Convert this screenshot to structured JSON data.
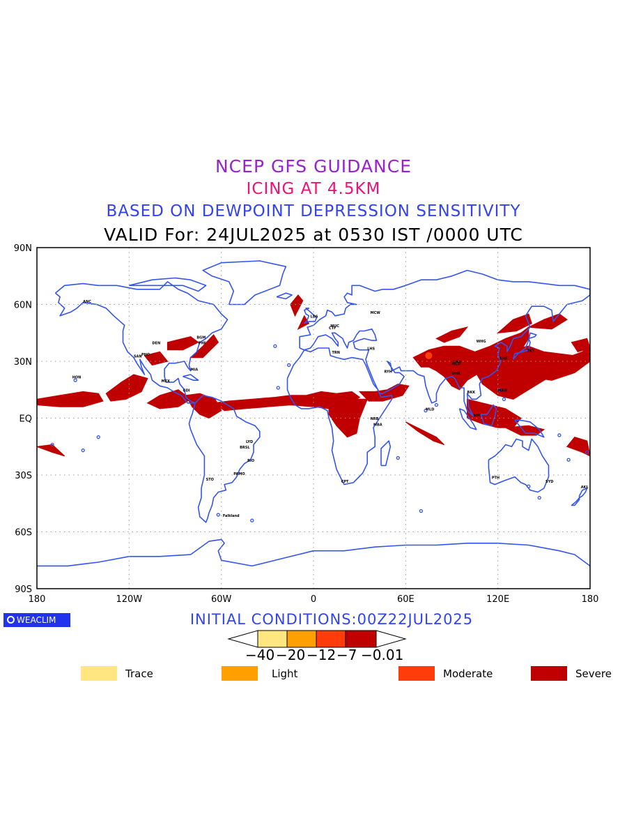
{
  "header": {
    "line1": "NCEP GFS GUIDANCE",
    "line2": "ICING AT 4.5KM",
    "line3": "BASED ON DEWPOINT DEPRESSION SENSITIVITY",
    "line4": "VALID For: 24JUL2025 at 0530 IST /0000 UTC"
  },
  "colors": {
    "line1": "#9922cc",
    "line2": "#ee1177",
    "line3": "#3344ee",
    "line4": "#000000",
    "coastline": "#3355ee",
    "trace": "#ffe680",
    "light": "#ffa000",
    "moderate": "#ff3c0a",
    "severe": "#c00000"
  },
  "map": {
    "lat_labels": [
      "90N",
      "60N",
      "30N",
      "EQ",
      "30S",
      "60S",
      "90S"
    ],
    "lon_labels": [
      "180",
      "120W",
      "60W",
      "0",
      "60E",
      "120E",
      "180"
    ],
    "station_labels": [
      "ANC",
      "MCW",
      "PHO",
      "LDS",
      "BGM",
      "DEN",
      "SAN",
      "MEX",
      "GDI",
      "HON",
      "MIA",
      "RYH",
      "CTF",
      "PHF",
      "MUC",
      "MLD",
      "LHS",
      "TRN",
      "MLD",
      "PTH",
      "SYD",
      "AKL",
      "BRSL",
      "LYD",
      "RIO",
      "STO",
      "PAMO",
      "CPT",
      "MBA",
      "NRB",
      "LHA",
      "WHG",
      "SHA",
      "TKY",
      "BKK",
      "SIN",
      "DHA",
      "MAN",
      "Falkland"
    ]
  },
  "footer": {
    "logo_text": "WEACLIM",
    "initial_conditions": "INITIAL CONDITIONS:00Z22JUL2025",
    "colorbar_ticks": [
      "−40",
      "−20",
      "−12",
      "−7",
      "−0.01"
    ],
    "legend": [
      {
        "label": "Trace",
        "color": "#ffe680"
      },
      {
        "label": "Light",
        "color": "#ffa000"
      },
      {
        "label": "Moderate",
        "color": "#ff3c0a"
      },
      {
        "label": "Severe",
        "color": "#c00000"
      }
    ]
  }
}
